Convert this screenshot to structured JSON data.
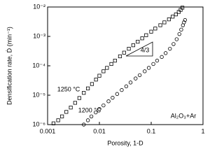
{
  "chart_data": {
    "type": "scatter",
    "xlabel": "Porosity, 1-D",
    "ylabel": "Densification rate, Ḋ (min⁻¹)",
    "xscale": "log",
    "yscale": "log",
    "xlim": [
      0.001,
      1
    ],
    "xticks": [
      0.001,
      0.01,
      0.1,
      1
    ],
    "ylim": [
      1e-06,
      0.01
    ],
    "yticks": [
      {
        "value": 1e-06,
        "label": "10⁻⁶"
      },
      {
        "value": 1e-05,
        "label": "10⁻⁵"
      },
      {
        "value": 0.0001,
        "label": "10⁻⁴"
      },
      {
        "value": 0.001,
        "label": "10⁻³"
      },
      {
        "value": 0.01,
        "label": "10⁻²"
      }
    ],
    "annotations": [
      "1250 °C",
      "1200 °C",
      "Al₂O₃+Ar",
      "4/3"
    ],
    "series": [
      {
        "name": "1250 °C",
        "color": "#000000",
        "marker": "square",
        "x": [
          0.0013,
          0.0016,
          0.0019,
          0.0023,
          0.0028,
          0.0034,
          0.0041,
          0.005,
          0.006,
          0.0072,
          0.0086,
          0.01,
          0.012,
          0.014,
          0.017,
          0.02,
          0.025,
          0.03,
          0.037,
          0.045,
          0.055,
          0.067,
          0.08,
          0.1,
          0.12,
          0.15,
          0.18,
          0.22,
          0.26,
          0.3,
          0.34,
          0.37,
          0.4
        ],
        "values": [
          1.1e-06,
          1.4e-06,
          1.9e-06,
          2.7e-06,
          3.8e-06,
          5.5e-06,
          8e-06,
          1.2e-05,
          1.7e-05,
          2.4e-05,
          3.4e-05,
          4.6e-05,
          6.5e-05,
          8.5e-05,
          0.000115,
          0.00015,
          0.00021,
          0.00028,
          0.00038,
          0.0005,
          0.00066,
          0.00086,
          0.0011,
          0.00145,
          0.00185,
          0.0024,
          0.003,
          0.0038,
          0.0047,
          0.0056,
          0.0068,
          0.008,
          0.0095
        ]
      },
      {
        "name": "1200 °C",
        "color": "#000000",
        "marker": "circle",
        "x": [
          0.005,
          0.006,
          0.007,
          0.0085,
          0.01,
          0.012,
          0.015,
          0.018,
          0.022,
          0.027,
          0.033,
          0.04,
          0.05,
          0.06,
          0.075,
          0.09,
          0.11,
          0.13,
          0.16,
          0.19,
          0.23,
          0.27,
          0.31,
          0.35,
          0.38,
          0.41,
          0.43,
          0.45
        ],
        "values": [
          1e-06,
          1.4e-06,
          1.9e-06,
          2.6e-06,
          3.4e-06,
          4.5e-06,
          6.2e-06,
          8.2e-06,
          1.1e-05,
          1.5e-05,
          2e-05,
          2.7e-05,
          3.7e-05,
          4.8e-05,
          6.5e-05,
          8.5e-05,
          0.000115,
          0.00015,
          0.0002,
          0.00027,
          0.00038,
          0.00055,
          0.0008,
          0.0012,
          0.0017,
          0.0024,
          0.003,
          0.0036
        ]
      }
    ]
  }
}
